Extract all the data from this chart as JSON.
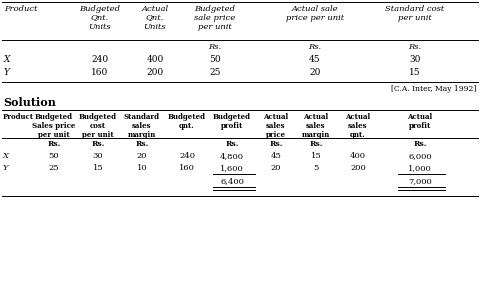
{
  "source_note": "[C.A. Inter, May 1992]",
  "top_headers": [
    "Product",
    "Budgeted\nQnt.\nUnits",
    "Actual\nQnt.\nUnits",
    "Budgeted\nsale price\nper unit",
    "Actual sale\nprice per unit",
    "Standard cost\nper unit"
  ],
  "top_rs": [
    "Rs.",
    "Rs.",
    "Rs."
  ],
  "top_rows": [
    [
      "X",
      "240",
      "400",
      "50",
      "45",
      "30"
    ],
    [
      "Y",
      "160",
      "200",
      "25",
      "20",
      "15"
    ]
  ],
  "solution_label": "Solution",
  "bot_headers": [
    "Product",
    "Budgeted\nSales price\nper unit",
    "Budgeted\ncost\nper unit",
    "Standard\nsales\nmargin",
    "Budgeted\nqnt.",
    "Budgeted\nprofit",
    "Actual\nsales\nprice",
    "Actual\nsales\nmargin",
    "Actual\nsales\nqnt.",
    "Actual\nprofit"
  ],
  "bot_rs": [
    "Rs.",
    "Rs.",
    "Rs.",
    "",
    "Rs.",
    "Rs.",
    "Rs.",
    "",
    "Rs."
  ],
  "bot_rows": [
    [
      "X",
      "50",
      "30",
      "20",
      "240",
      "4,800",
      "45",
      "15",
      "400",
      "6,000"
    ],
    [
      "Y",
      "25",
      "15",
      "10",
      "160",
      "1,600",
      "20",
      "5",
      "200",
      "1,000"
    ]
  ],
  "bot_totals": [
    "6,400",
    "7,000"
  ],
  "bg_color": "#ffffff"
}
